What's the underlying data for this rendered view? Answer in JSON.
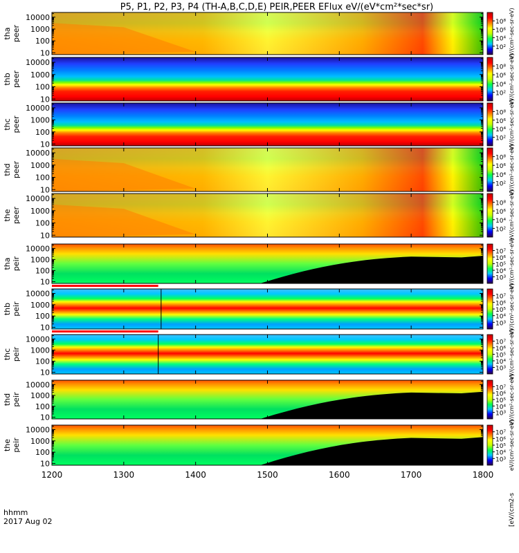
{
  "chart_data": {
    "type": "heatmap",
    "title": "P5, P1, P2, P3, P4 (TH-A,B,C,D,E) PEIR,PEER EFlux eV/(eV*cm²*sec*sr)",
    "x_axis": {
      "ticks": [
        "1200",
        "1300",
        "1400",
        "1500",
        "1600",
        "1700",
        "1800"
      ],
      "range": [
        1200,
        1800
      ],
      "label_line1": "hhmm",
      "label_line2": "2017 Aug 02"
    },
    "y_ticks": [
      "10",
      "100",
      "1000",
      "10000"
    ],
    "y_range": [
      7,
      25000
    ],
    "y_scale": "log",
    "panels": [
      {
        "probe": "tha",
        "kind": "peer",
        "label1": "tha",
        "label2": "peer",
        "pattern": "peer_front"
      },
      {
        "probe": "thb",
        "kind": "peer",
        "label1": "thb",
        "label2": "peer",
        "pattern": "peer_band"
      },
      {
        "probe": "thc",
        "kind": "peer",
        "label1": "thc",
        "label2": "peer",
        "pattern": "peer_band"
      },
      {
        "probe": "thd",
        "kind": "peer",
        "label1": "thd",
        "label2": "peer",
        "pattern": "peer_front"
      },
      {
        "probe": "the",
        "kind": "peer",
        "label1": "the",
        "label2": "peer",
        "pattern": "peer_front"
      },
      {
        "probe": "tha",
        "kind": "peir",
        "label1": "tha",
        "label2": "peir",
        "pattern": "peir_decay",
        "top_bar": false
      },
      {
        "probe": "thb",
        "kind": "peir",
        "label1": "thb",
        "label2": "peir",
        "pattern": "peir_band",
        "top_bar": true,
        "bar_end": 1348,
        "marker_hhmm": 1352
      },
      {
        "probe": "thc",
        "kind": "peir",
        "label1": "thc",
        "label2": "peir",
        "pattern": "peir_band",
        "top_bar": true,
        "bar_end": 1348,
        "marker_hhmm": 1348
      },
      {
        "probe": "thd",
        "kind": "peir",
        "label1": "thd",
        "label2": "peir",
        "pattern": "peir_decay",
        "top_bar": false
      },
      {
        "probe": "the",
        "kind": "peir",
        "label1": "the",
        "label2": "peir",
        "pattern": "peir_decay",
        "top_bar": false
      }
    ],
    "colorbar_peer": {
      "ticks": [
        "10²",
        "10⁴",
        "10⁶",
        "10⁸"
      ],
      "label": "eV/(cm²-sec-sr-eV)"
    },
    "colorbar_peir": {
      "ticks": [
        "10³",
        "10⁴",
        "10⁵",
        "10⁶",
        "10⁷"
      ],
      "label": "eV/(cm²-sec-sr-eV)"
    },
    "colorbar_bottom_label": "[eV/(cm2-s",
    "colorscale": [
      "#2e003f",
      "#0000ff",
      "#00c8ff",
      "#00ff50",
      "#c8ff00",
      "#ffff00",
      "#ff8000",
      "#ff0000",
      "#c00000"
    ],
    "fill_colors": {
      "missing": "#000000",
      "no_coverage": "#ff0000"
    }
  }
}
